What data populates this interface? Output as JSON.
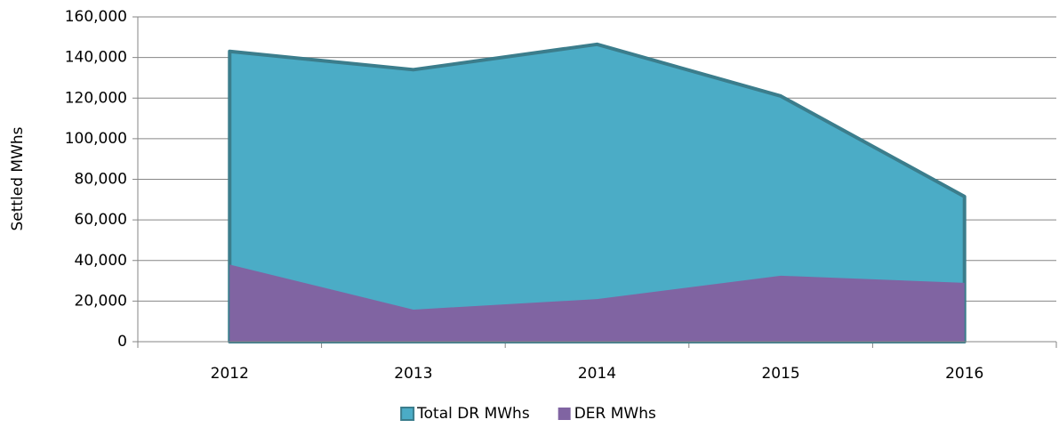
{
  "chart_data": {
    "type": "area",
    "y_label": "Settled MWhs",
    "categories": [
      "2012",
      "2013",
      "2014",
      "2015",
      "2016"
    ],
    "series": [
      {
        "name": "Total DR MWhs",
        "color": "#4bacc6",
        "edge_color": "#3b7d8c",
        "values": [
          143000,
          134000,
          146500,
          121000,
          71500
        ]
      },
      {
        "name": "DER MWhs",
        "color": "#8064a2",
        "values": [
          38000,
          15800,
          21000,
          32500,
          29000
        ]
      }
    ],
    "ylim": [
      0,
      160000
    ],
    "yticks": [
      0,
      {
        "value": 20000,
        "label": "20,000"
      },
      {
        "value": 40000,
        "label": "40,000"
      },
      {
        "value": 60000,
        "label": "60,000"
      },
      {
        "value": 80000,
        "label": "80,000"
      },
      {
        "value": 100000,
        "label": "100,000"
      },
      {
        "value": 120000,
        "label": "120,000"
      },
      {
        "value": 140000,
        "label": "140,000"
      },
      {
        "value": 160000,
        "label": "160,000"
      }
    ],
    "grid": true,
    "legend": "bottom"
  }
}
